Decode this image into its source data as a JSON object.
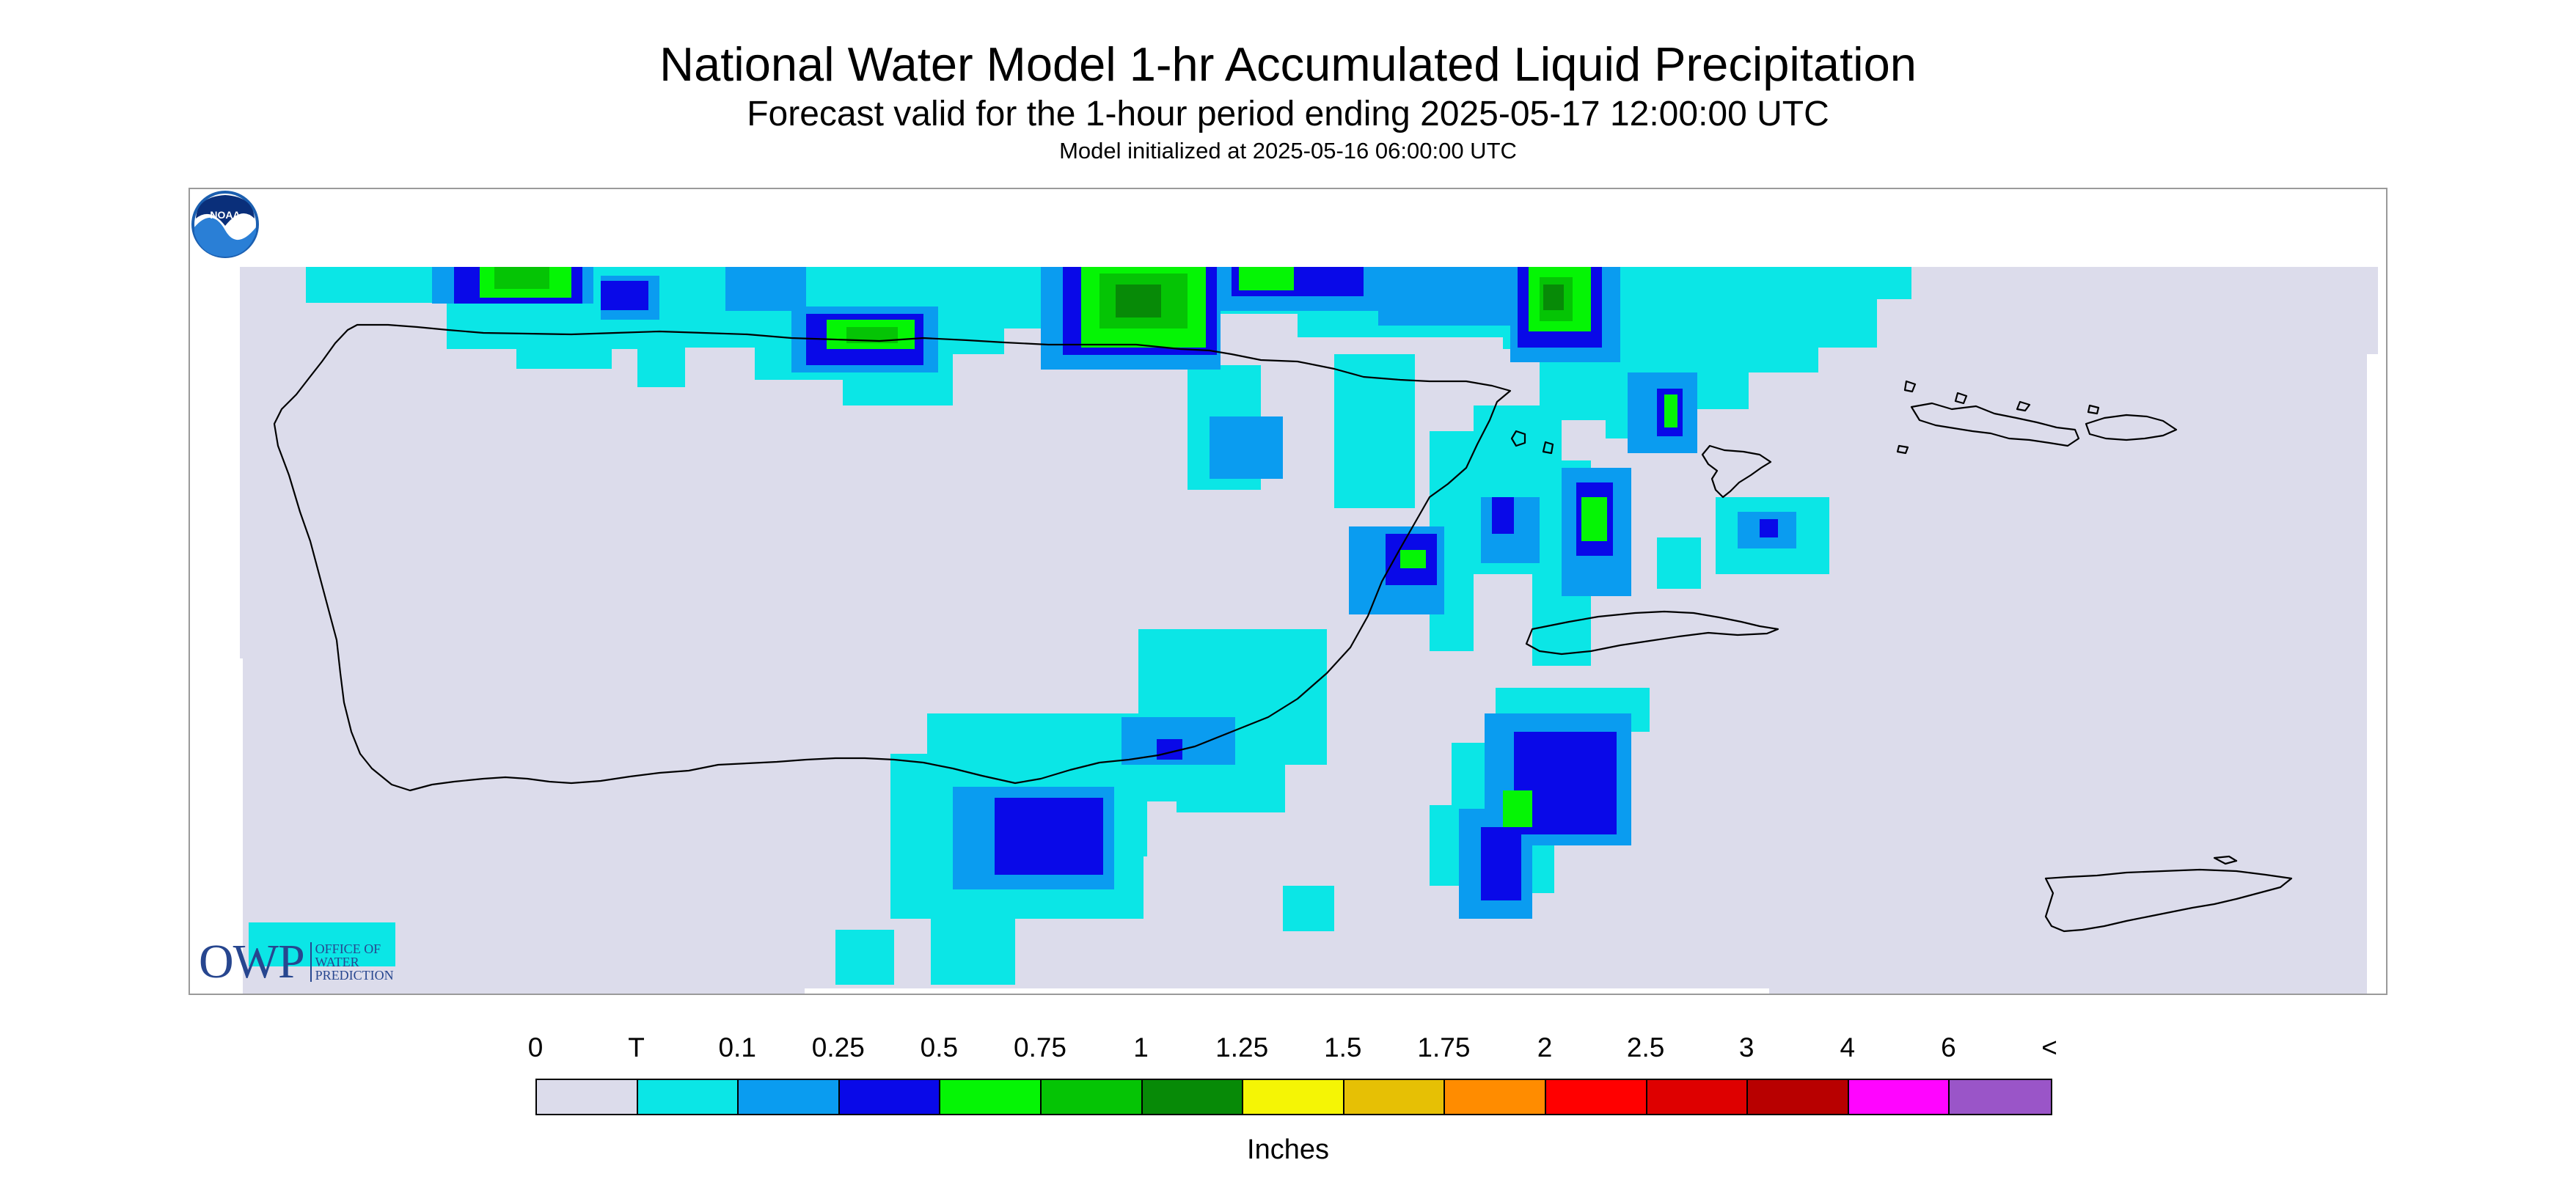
{
  "header": {
    "title": "National Water Model 1-hr Accumulated Liquid Precipitation",
    "subtitle": "Forecast valid for the 1-hour period ending 2025-05-17 12:00:00 UTC",
    "init_text": "Model initialized at 2025-05-16 06:00:00 UTC"
  },
  "map": {
    "background_color": "#dcdceb",
    "coastline_color": "#000000",
    "owp_logo": {
      "big": "OWP",
      "lines": [
        "OFFICE OF",
        "WATER",
        "PREDICTION"
      ]
    },
    "noaa_logo": {
      "text": "NOAA"
    }
  },
  "legend": {
    "labels": [
      "0",
      "T",
      "0.1",
      "0.25",
      "0.5",
      "0.75",
      "1",
      "1.25",
      "1.5",
      "1.75",
      "2",
      "2.5",
      "3",
      "4",
      "6",
      "<"
    ],
    "colors": [
      "#dcdceb",
      "#0be6e6",
      "#0a9cf0",
      "#0909e8",
      "#05f505",
      "#05c405",
      "#078a07",
      "#f5f505",
      "#e6c005",
      "#ff8c00",
      "#ff0000",
      "#de0000",
      "#b80000",
      "#ff05ff",
      "#9a55c8"
    ],
    "units": "Inches"
  }
}
